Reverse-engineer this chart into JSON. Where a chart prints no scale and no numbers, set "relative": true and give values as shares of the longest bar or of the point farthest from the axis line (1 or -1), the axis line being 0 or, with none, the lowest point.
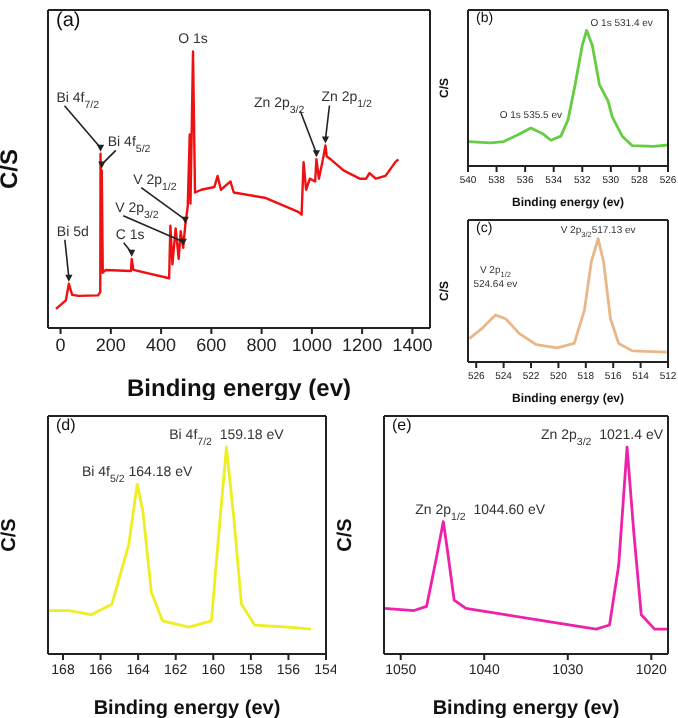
{
  "chart_data": [
    {
      "type": "line",
      "title": "(a)",
      "xlabel": "Binding energy (ev)",
      "ylabel": "C/S",
      "relative": true,
      "color": "#ee1111",
      "tick_labels": "x",
      "xlim": [
        -50,
        1470
      ],
      "xticks": [
        0,
        200,
        400,
        600,
        800,
        1000,
        1200,
        1400
      ],
      "x": [
        -18,
        21,
        33,
        46,
        72,
        149,
        158,
        159,
        162,
        164,
        168,
        180,
        280,
        283,
        290,
        432,
        437,
        445,
        458,
        470,
        478,
        488,
        496,
        506,
        514,
        517,
        527,
        535,
        560,
        612,
        625,
        638,
        676,
        689,
        817,
        946,
        959,
        967,
        977,
        992,
        1013,
        1018,
        1028,
        1044,
        1054,
        1059,
        1075,
        1126,
        1190,
        1216,
        1229,
        1254,
        1293,
        1332,
        1344
      ],
      "values": [
        0.069,
        0.1,
        0.16,
        0.12,
        0.116,
        0.118,
        0.13,
        0.63,
        0.3,
        0.57,
        0.2,
        0.21,
        0.206,
        0.25,
        0.21,
        0.18,
        0.37,
        0.23,
        0.36,
        0.25,
        0.35,
        0.29,
        0.37,
        0.44,
        0.7,
        0.45,
        1.0,
        0.49,
        0.5,
        0.51,
        0.55,
        0.5,
        0.53,
        0.49,
        0.47,
        0.42,
        0.41,
        0.6,
        0.5,
        0.54,
        0.53,
        0.61,
        0.54,
        0.61,
        0.66,
        0.62,
        0.61,
        0.57,
        0.54,
        0.54,
        0.56,
        0.54,
        0.55,
        0.6,
        0.61
      ],
      "annotations": [
        {
          "text": "Bi 5d",
          "x": 33,
          "y": 0.16
        },
        {
          "text": "Bi 4f$_{7/2}$",
          "x": 159,
          "y": 0.63
        },
        {
          "text": "Bi 4f$_{5/2}$",
          "x": 164,
          "y": 0.57
        },
        {
          "text": "C 1s",
          "x": 283,
          "y": 0.25
        },
        {
          "text": "V 2p$_{3/2}$",
          "x": 488,
          "y": 0.29
        },
        {
          "text": "V 2p$_{1/2}$",
          "x": 496,
          "y": 0.37
        },
        {
          "text": "O 1s",
          "x": 527,
          "y": 1.0
        },
        {
          "text": "Zn 2p$_{3/2}$",
          "x": 1018,
          "y": 0.61
        },
        {
          "text": "Zn 2p$_{1/2}$",
          "x": 1054,
          "y": 0.66
        }
      ]
    },
    {
      "type": "line",
      "title": "(b)",
      "xlabel": "Binding energy (ev)",
      "ylabel": "C/S",
      "relative": true,
      "color": "#66cc44",
      "tick_labels": "x",
      "xlim": [
        540,
        526
      ],
      "xticks": [
        540,
        538,
        536,
        534,
        532,
        530,
        528,
        526
      ],
      "x": [
        540,
        538.4,
        537.5,
        536.5,
        535.6,
        534.8,
        534.2,
        533.5,
        533,
        532.5,
        532,
        531.7,
        531.3,
        530.8,
        530.2,
        529.9,
        529.2,
        528.5,
        527,
        526
      ],
      "values": [
        0.18,
        0.17,
        0.18,
        0.23,
        0.28,
        0.24,
        0.19,
        0.22,
        0.34,
        0.6,
        0.89,
        1.0,
        0.89,
        0.6,
        0.48,
        0.36,
        0.22,
        0.15,
        0.145,
        0.155
      ],
      "annotations": [
        {
          "text": "O 1s 531.4 ev",
          "x": 531.7,
          "y": 1.0
        },
        {
          "text": "O 1s 535.5 ev",
          "x": 535.6,
          "y": 0.28
        }
      ]
    },
    {
      "type": "line",
      "title": "(c)",
      "xlabel": "Binding energy (ev)",
      "ylabel": "C/S",
      "relative": true,
      "color": "#e8b88a",
      "tick_labels": "x",
      "xlim": [
        526.6,
        512
      ],
      "xticks": [
        526,
        524,
        522,
        520,
        518,
        516,
        514,
        512
      ],
      "x": [
        526.5,
        525.6,
        524.6,
        523.85,
        522.85,
        521.6,
        520.1,
        518.85,
        518.1,
        517.6,
        517.1,
        516.7,
        516.2,
        515.6,
        514.6,
        512.1
      ],
      "values": [
        0.19,
        0.27,
        0.38,
        0.35,
        0.23,
        0.14,
        0.115,
        0.15,
        0.42,
        0.81,
        1.0,
        0.81,
        0.35,
        0.15,
        0.09,
        0.08
      ],
      "annotations": [
        {
          "text": "V 2p$_{3/2}$517.13 ev",
          "x": 517.1,
          "y": 1.0
        },
        {
          "text": "V 2p$_{1/2}$\n524.64 ev",
          "x": 524.6,
          "y": 0.38
        }
      ]
    },
    {
      "type": "line",
      "title": "(d)",
      "xlabel": "Binding energy (ev)",
      "ylabel": "C/S",
      "relative": true,
      "color": "#eeee22",
      "tick_labels": "x",
      "xlim": [
        168.8,
        154
      ],
      "xticks": [
        168,
        166,
        164,
        162,
        160,
        158,
        156,
        154
      ],
      "x": [
        168.8,
        167.7,
        166.5,
        165.4,
        164.5,
        164.05,
        163.75,
        163.3,
        162.7,
        161.3,
        160.1,
        159.7,
        159.3,
        158.9,
        158.5,
        157.8,
        156,
        154.8
      ],
      "values": [
        0.21,
        0.21,
        0.19,
        0.24,
        0.53,
        0.82,
        0.69,
        0.3,
        0.16,
        0.13,
        0.16,
        0.59,
        1.0,
        0.65,
        0.24,
        0.14,
        0.13,
        0.12
      ],
      "annotations": [
        {
          "text": "Bi 4f$_{5/2}$ 164.18 eV",
          "x": 164.05,
          "y": 0.82
        },
        {
          "text": "Bi 4f$_{7/2}$  159.18 eV",
          "x": 159.3,
          "y": 1.0
        }
      ]
    },
    {
      "type": "line",
      "title": "(e)",
      "xlabel": "Binding energy (ev)",
      "ylabel": "C/S",
      "relative": true,
      "color": "#ee22aa",
      "tick_labels": "x",
      "xlim": [
        1052,
        1018
      ],
      "xticks": [
        1050,
        1040,
        1030,
        1020
      ],
      "x": [
        1052,
        1048.4,
        1046.9,
        1045.7,
        1044.9,
        1044.4,
        1043.6,
        1042.2,
        1037.5,
        1032.1,
        1026.6,
        1025,
        1023.9,
        1022.9,
        1022.1,
        1021.2,
        1019.6,
        1018
      ],
      "values": [
        0.22,
        0.21,
        0.23,
        0.47,
        0.64,
        0.5,
        0.26,
        0.22,
        0.19,
        0.155,
        0.12,
        0.14,
        0.43,
        1.0,
        0.59,
        0.19,
        0.12,
        0.12
      ],
      "annotations": [
        {
          "text": "Zn 2p$_{1/2}$  1044.60 eV",
          "x": 1044.9,
          "y": 0.64
        },
        {
          "text": "Zn 2p$_{3/2}$  1021.4 eV",
          "x": 1022.9,
          "y": 1.0
        }
      ]
    }
  ]
}
